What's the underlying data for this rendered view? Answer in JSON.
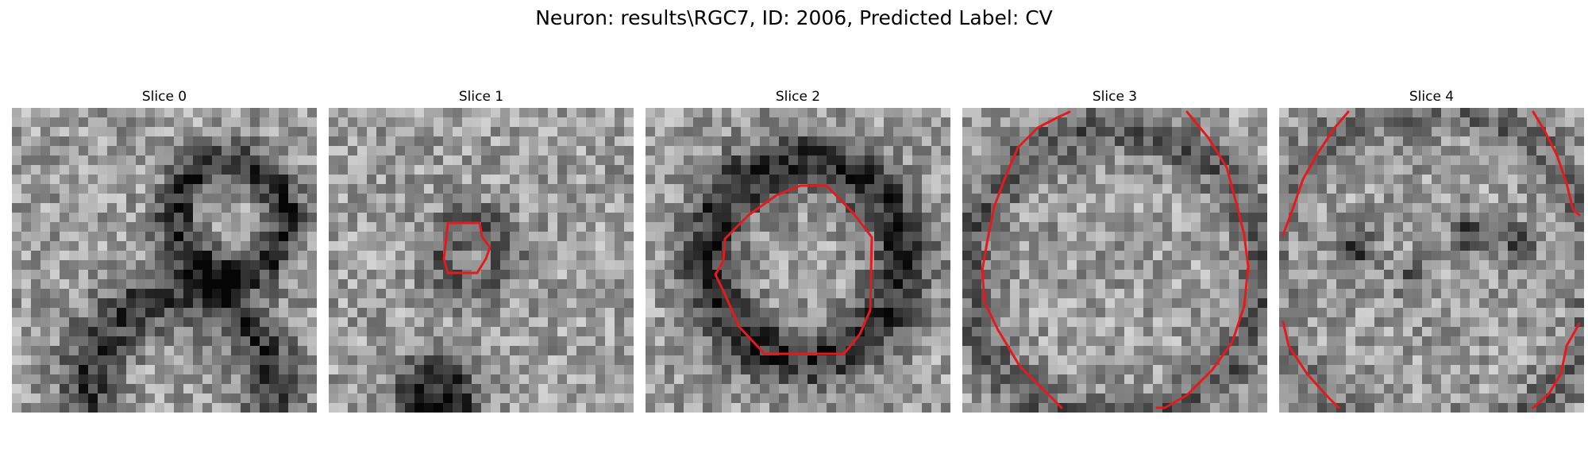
{
  "figure": {
    "title": "Neuron: results\\RGC7, ID: 2006, Predicted Label: CV"
  },
  "palette": {
    "contour": "#e41a1c"
  },
  "panels": [
    {
      "title": "Slice 0"
    },
    {
      "title": "Slice 1"
    },
    {
      "title": "Slice 2"
    },
    {
      "title": "Slice 3"
    },
    {
      "title": "Slice 4"
    }
  ]
}
